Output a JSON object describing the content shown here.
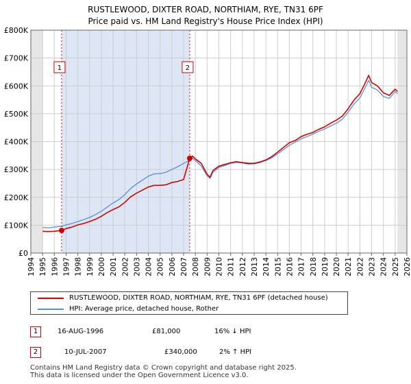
{
  "header": {
    "title_line1": "RUSTLEWOOD, DIXTER ROAD, NORTHIAM, RYE, TN31 6PF",
    "title_line2": "Price paid vs. HM Land Registry's House Price Index (HPI)"
  },
  "chart_data": {
    "type": "line",
    "title": "RUSTLEWOOD, DIXTER ROAD, NORTHIAM, RYE, TN31 6PF — Price paid vs. HM Land Registry's House Price Index (HPI)",
    "xlim": [
      1994,
      2026
    ],
    "ylim": [
      0,
      800000
    ],
    "x_ticks": [
      "1994",
      "1995",
      "1996",
      "1997",
      "1998",
      "1999",
      "2000",
      "2001",
      "2002",
      "2003",
      "2004",
      "2005",
      "2006",
      "2007",
      "2008",
      "2009",
      "2010",
      "2011",
      "2012",
      "2013",
      "2014",
      "2015",
      "2016",
      "2017",
      "2018",
      "2019",
      "2020",
      "2021",
      "2022",
      "2023",
      "2024",
      "2025",
      "2026"
    ],
    "y_ticks": [
      {
        "value": 0,
        "label": "£0"
      },
      {
        "value": 100000,
        "label": "£100K"
      },
      {
        "value": 200000,
        "label": "£200K"
      },
      {
        "value": 300000,
        "label": "£300K"
      },
      {
        "value": 400000,
        "label": "£400K"
      },
      {
        "value": 500000,
        "label": "£500K"
      },
      {
        "value": 600000,
        "label": "£600K"
      },
      {
        "value": 700000,
        "label": "£700K"
      },
      {
        "value": 800000,
        "label": "£800K"
      }
    ],
    "data_range": [
      1995.0,
      2025.2
    ],
    "grid": true,
    "series": [
      {
        "name": "RUSTLEWOOD, DIXTER ROAD, NORTHIAM, RYE, TN31 6PF (detached house)",
        "color": "#cc0000",
        "x": [
          1995.0,
          1995.5,
          1996.0,
          1996.62,
          1997.0,
          1997.5,
          1998.0,
          1998.5,
          1999.0,
          1999.5,
          2000.0,
          2000.5,
          2001.0,
          2001.5,
          2002.0,
          2002.5,
          2003.0,
          2003.5,
          2004.0,
          2004.5,
          2005.0,
          2005.5,
          2006.0,
          2006.5,
          2007.0,
          2007.52,
          2007.75,
          2008.0,
          2008.5,
          2009.0,
          2009.25,
          2009.5,
          2010.0,
          2010.5,
          2011.0,
          2011.5,
          2012.0,
          2012.5,
          2013.0,
          2013.5,
          2014.0,
          2014.5,
          2015.0,
          2015.5,
          2016.0,
          2016.5,
          2017.0,
          2017.5,
          2018.0,
          2018.5,
          2019.0,
          2019.5,
          2020.0,
          2020.5,
          2021.0,
          2021.5,
          2022.0,
          2022.5,
          2022.75,
          2023.0,
          2023.5,
          2024.0,
          2024.5,
          2025.0,
          2025.2
        ],
        "y": [
          78000,
          77000,
          78000,
          81000,
          88000,
          93000,
          101000,
          106000,
          113000,
          121000,
          132000,
          145000,
          156000,
          166000,
          182000,
          202000,
          215000,
          226000,
          237000,
          243000,
          243000,
          245000,
          253000,
          257000,
          264000,
          340000,
          348000,
          338000,
          322000,
          283000,
          272000,
          296000,
          312000,
          318000,
          324000,
          328000,
          325000,
          322000,
          322000,
          327000,
          334000,
          346000,
          362000,
          379000,
          396000,
          404000,
          418000,
          426000,
          433000,
          444000,
          453000,
          466000,
          477000,
          491000,
          518000,
          549000,
          572000,
          615000,
          638000,
          612000,
          600000,
          575000,
          566000,
          588000,
          580000
        ]
      },
      {
        "name": "HPI: Average price, detached house, Rother",
        "color": "#5b8fd0",
        "x": [
          1995.0,
          1995.5,
          1996.0,
          1996.62,
          1997.0,
          1997.5,
          1998.0,
          1998.5,
          1999.0,
          1999.5,
          2000.0,
          2000.5,
          2001.0,
          2001.5,
          2002.0,
          2002.5,
          2003.0,
          2003.5,
          2004.0,
          2004.5,
          2005.0,
          2005.5,
          2006.0,
          2006.5,
          2007.0,
          2007.52,
          2007.75,
          2008.0,
          2008.5,
          2009.0,
          2009.25,
          2009.5,
          2010.0,
          2010.5,
          2011.0,
          2011.5,
          2012.0,
          2012.5,
          2013.0,
          2013.5,
          2014.0,
          2014.5,
          2015.0,
          2015.5,
          2016.0,
          2016.5,
          2017.0,
          2017.5,
          2018.0,
          2018.5,
          2019.0,
          2019.5,
          2020.0,
          2020.5,
          2021.0,
          2021.5,
          2022.0,
          2022.5,
          2022.75,
          2023.0,
          2023.5,
          2024.0,
          2024.5,
          2025.0,
          2025.2
        ],
        "y": [
          92000,
          90000,
          93000,
          96000,
          101000,
          106000,
          113000,
          120000,
          128000,
          138000,
          150000,
          165000,
          180000,
          192000,
          210000,
          232000,
          248000,
          262000,
          276000,
          284000,
          285000,
          290000,
          300000,
          310000,
          322000,
          333000,
          340000,
          332000,
          312000,
          278000,
          268000,
          290000,
          307000,
          314000,
          322000,
          326000,
          323000,
          319000,
          320000,
          325000,
          332000,
          342000,
          356000,
          371000,
          387000,
          398000,
          410000,
          418000,
          427000,
          437000,
          445000,
          456000,
          466000,
          480000,
          505000,
          535000,
          557000,
          598000,
          620000,
          595000,
          585000,
          562000,
          555000,
          580000,
          572000
        ]
      }
    ],
    "annotations": [
      {
        "label": "1",
        "x": 1996.62,
        "y": 81000,
        "date": "16-AUG-1996",
        "price": "£81,000",
        "hpi": "16% ↓ HPI"
      },
      {
        "label": "2",
        "x": 2007.52,
        "y": 340000,
        "date": "10-JUL-2007",
        "price": "£340,000",
        "hpi": "2% ↑ HPI"
      }
    ]
  },
  "legend": {
    "red_label": "RUSTLEWOOD, DIXTER ROAD, NORTHIAM, RYE, TN31 6PF (detached house)",
    "blue_label": "HPI: Average price, detached house, Rother"
  },
  "transactions": [
    {
      "num": "1",
      "date": "16-AUG-1996",
      "price": "£81,000",
      "hpi": "16% ↓ HPI"
    },
    {
      "num": "2",
      "date": "10-JUL-2007",
      "price": "£340,000",
      "hpi": "2% ↑ HPI"
    }
  ],
  "footer": {
    "line1": "Contains HM Land Registry data © Crown copyright and database right 2025.",
    "line2": "This data is licensed under the Open Government Licence v3.0."
  },
  "colors": {
    "red": "#cc0000",
    "blue": "#5b8fd0",
    "shade": "#dde6f5",
    "grid": "#cccccc"
  }
}
